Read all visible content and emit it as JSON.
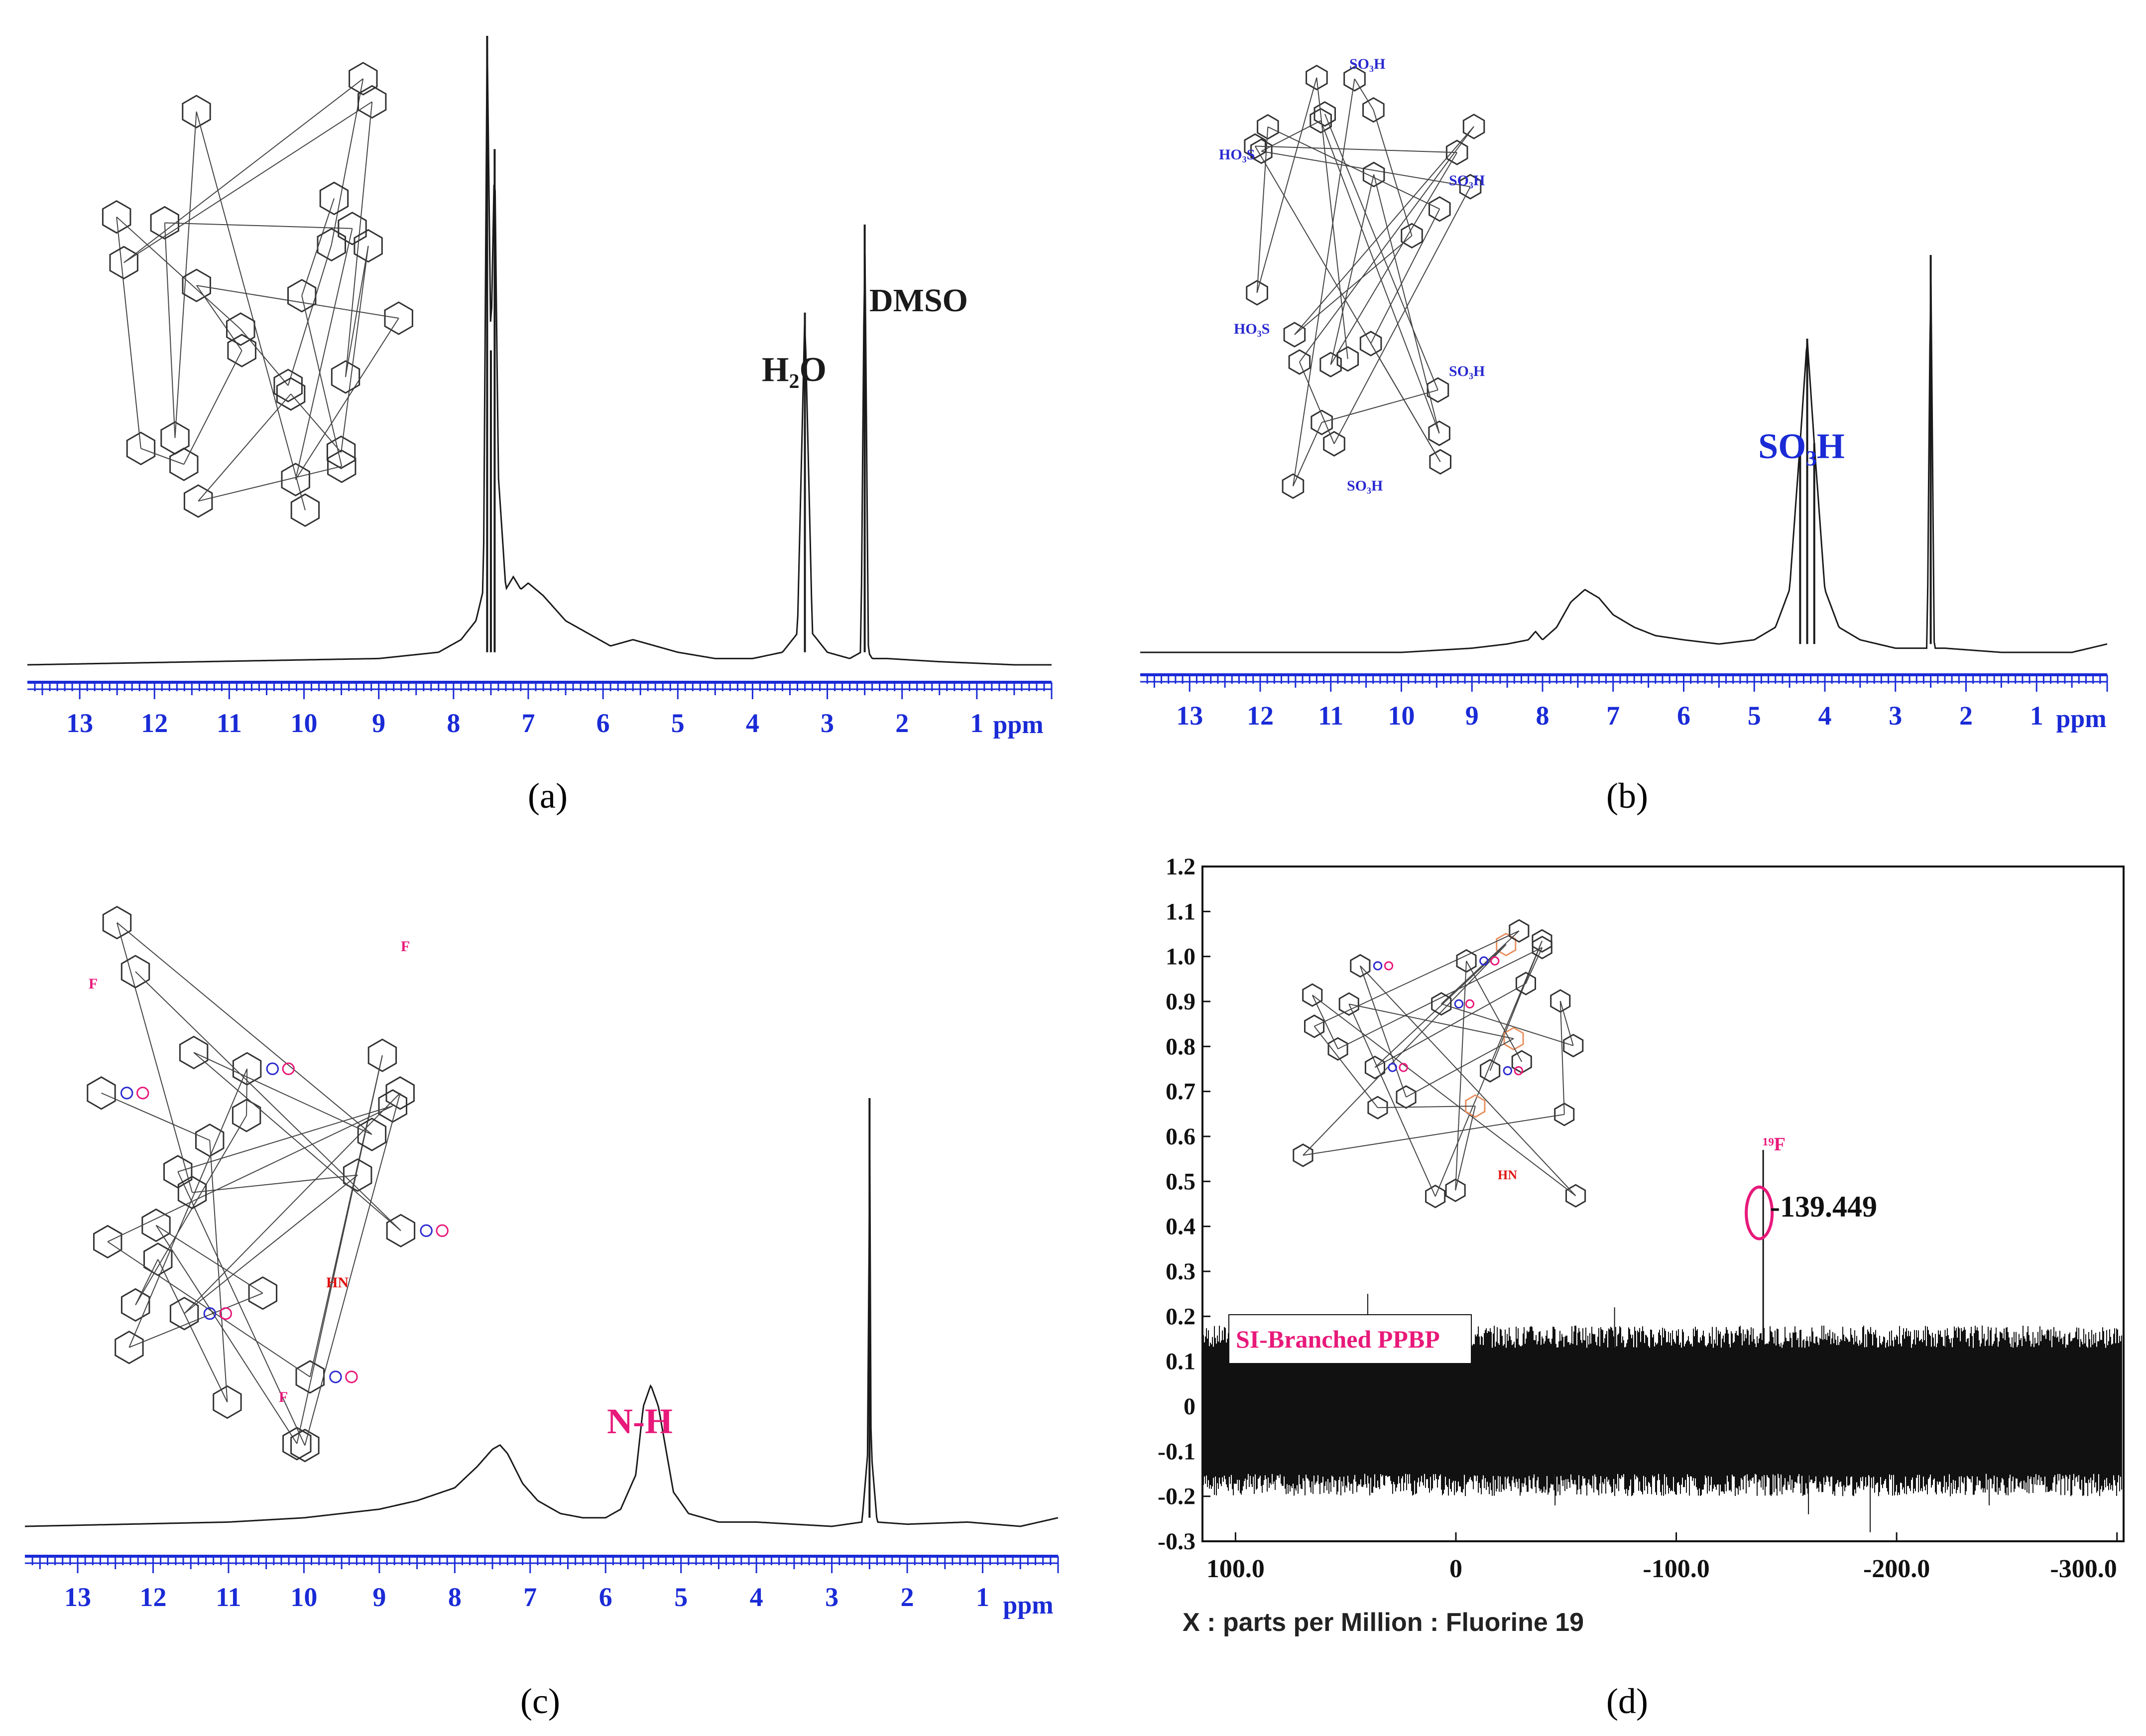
{
  "colors": {
    "axis_blue": "#1a2bd6",
    "trace": "#1a1a1a",
    "magenta": "#e8197a",
    "sulfonyl_blue": "#2a2ad0",
    "nh_red": "#e01010",
    "orange": "#e89060"
  },
  "panels": [
    {
      "caption": "(a)",
      "tick_unit": "ppm",
      "annotations": [
        {
          "text": "H₂O",
          "color": "#1a1a1a"
        },
        {
          "text": "DMSO",
          "color": "#1a1a1a"
        }
      ],
      "structure_labels": []
    },
    {
      "caption": "(b)",
      "tick_unit": "ppm",
      "annotations": [
        {
          "text": "SO₃H",
          "color": "#1a2bd6"
        }
      ],
      "structure_labels": [
        "SO₃H",
        "HO₃S",
        "SO₃H",
        "HO₃S",
        "SO₃H",
        "SO₃H"
      ]
    },
    {
      "caption": "(c)",
      "tick_unit": "ppm",
      "annotations": [
        {
          "text": "N-H",
          "color": "#e8197a"
        }
      ],
      "structure_labels": [
        "F",
        "HN",
        "F",
        "HN",
        "F"
      ]
    },
    {
      "caption": "(d)",
      "xlabel": "X : parts per Million : Fluorine 19",
      "peak_label": "-139.449",
      "nucleus_label": "¹⁹F",
      "legend_box": "SI-Branched PPBP"
    }
  ],
  "chart_data": [
    {
      "type": "line",
      "panel": "a",
      "x_unit": "ppm",
      "xlim": [
        13.7,
        0
      ],
      "x_ticks": [
        13,
        12,
        11,
        10,
        9,
        8,
        7,
        6,
        5,
        4,
        3,
        2,
        1
      ],
      "series": [
        {
          "values_x": [
            13.7,
            9.0,
            8.2,
            7.9,
            7.7,
            7.6,
            7.55,
            7.5,
            7.45,
            7.4,
            7.3,
            7.2,
            7.1,
            7.0,
            6.8,
            6.5,
            6.2,
            5.9,
            5.6,
            5.3,
            5.0,
            4.5,
            4.0,
            3.6,
            3.4,
            3.3,
            3.2,
            3.0,
            2.7,
            2.55,
            2.5,
            2.45,
            2.4,
            2.2,
            1.5,
            0.5,
            0
          ],
          "values_y": [
            0.0,
            0.01,
            0.02,
            0.04,
            0.07,
            0.12,
            1.0,
            0.5,
            0.82,
            0.3,
            0.12,
            0.14,
            0.12,
            0.13,
            0.11,
            0.07,
            0.05,
            0.03,
            0.04,
            0.03,
            0.02,
            0.01,
            0.01,
            0.02,
            0.05,
            0.56,
            0.05,
            0.02,
            0.01,
            0.02,
            0.7,
            0.02,
            0.01,
            0.01,
            0.005,
            0.0,
            0.0
          ]
        }
      ],
      "peaks": [
        {
          "label": "H₂O",
          "x": 3.3
        },
        {
          "label": "DMSO",
          "x": 2.5
        }
      ]
    },
    {
      "type": "line",
      "panel": "b",
      "x_unit": "ppm",
      "xlim": [
        13.7,
        0
      ],
      "x_ticks": [
        13,
        12,
        11,
        10,
        9,
        8,
        7,
        6,
        5,
        4,
        3,
        2,
        1
      ],
      "series": [
        {
          "values_x": [
            13.7,
            10,
            9,
            8.5,
            8.2,
            8.1,
            8.0,
            7.8,
            7.6,
            7.4,
            7.2,
            7.0,
            6.7,
            6.4,
            6.0,
            5.5,
            5.0,
            4.7,
            4.5,
            4.35,
            4.25,
            4.15,
            4.0,
            3.8,
            3.5,
            3.0,
            2.7,
            2.55,
            2.5,
            2.45,
            2.3,
            1.5,
            0.5,
            0
          ],
          "values_y": [
            0.0,
            0.0,
            0.01,
            0.02,
            0.03,
            0.05,
            0.03,
            0.06,
            0.12,
            0.15,
            0.13,
            0.09,
            0.06,
            0.04,
            0.03,
            0.02,
            0.03,
            0.06,
            0.15,
            0.5,
            0.75,
            0.5,
            0.15,
            0.06,
            0.03,
            0.01,
            0.01,
            0.01,
            0.95,
            0.01,
            0.01,
            0.0,
            0.0,
            0.02
          ]
        }
      ],
      "peaks": [
        {
          "label": "SO₃H",
          "x": 4.25
        }
      ]
    },
    {
      "type": "line",
      "panel": "c",
      "x_unit": "ppm",
      "xlim": [
        13.7,
        0
      ],
      "x_ticks": [
        13,
        12,
        11,
        10,
        9,
        8,
        7,
        6,
        5,
        4,
        3,
        2,
        1
      ],
      "series": [
        {
          "values_x": [
            13.7,
            11,
            10,
            9,
            8.5,
            8.0,
            7.7,
            7.5,
            7.4,
            7.3,
            7.1,
            6.9,
            6.6,
            6.3,
            6.0,
            5.8,
            5.6,
            5.5,
            5.4,
            5.3,
            5.1,
            4.9,
            4.5,
            4.0,
            3.0,
            2.6,
            2.52,
            2.5,
            2.48,
            2.4,
            2.0,
            1.2,
            0.5,
            0
          ],
          "values_y": [
            0.0,
            0.01,
            0.02,
            0.04,
            0.06,
            0.09,
            0.14,
            0.18,
            0.19,
            0.17,
            0.1,
            0.06,
            0.03,
            0.02,
            0.02,
            0.04,
            0.12,
            0.28,
            0.33,
            0.28,
            0.08,
            0.03,
            0.01,
            0.01,
            0.0,
            0.01,
            0.18,
            1.0,
            0.18,
            0.01,
            0.005,
            0.01,
            0.0,
            0.02
          ]
        }
      ],
      "peaks": [
        {
          "label": "N-H",
          "x": 5.4
        }
      ]
    },
    {
      "type": "line",
      "panel": "d",
      "xlabel": "X : parts per Million : Fluorine 19",
      "xlim": [
        115,
        -303
      ],
      "ylim": [
        -0.3,
        1.2
      ],
      "x_ticks": [
        100.0,
        0,
        -100.0,
        -200.0,
        -300.0
      ],
      "x_tick_labels": [
        "100.0",
        "0",
        "-100.0",
        "-200.0",
        "-300.0"
      ],
      "y_ticks": [
        1.2,
        1.1,
        1.0,
        0.9,
        0.8,
        0.7,
        0.6,
        0.5,
        0.4,
        0.3,
        0.2,
        0.1,
        0,
        -0.1,
        -0.2,
        -0.3
      ],
      "y_tick_labels": [
        "1.2",
        "1.1",
        "1.0",
        "0.9",
        "0.8",
        "0.7",
        "0.6",
        "0.5",
        "0.4",
        "0.3",
        "0.2",
        "0.1",
        "0",
        "-0.1",
        "-0.2",
        "-0.3"
      ],
      "noise_band": [
        -0.15,
        0.13
      ],
      "peaks": [
        {
          "label": "-139.449",
          "x": -139.449,
          "y": 0.57
        }
      ]
    }
  ]
}
